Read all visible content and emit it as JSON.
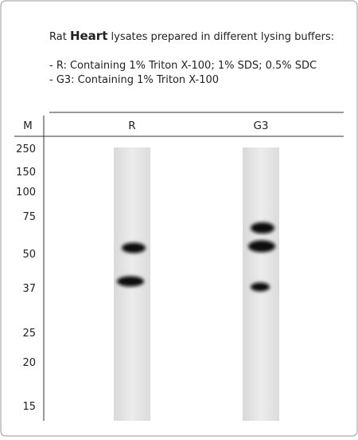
{
  "header": {
    "title_prefix": "Rat",
    "title_bold": "Heart",
    "title_suffix": "lysates prepared in different lysing buffers:",
    "buffers": [
      "- R: Containing 1% Triton X-100; 1% SDS; 0.5% SDC",
      "- G3: Containing 1% Triton X-100"
    ]
  },
  "columns": [
    "M",
    "R",
    "G3"
  ],
  "markers": [
    "250",
    "150",
    "100",
    "75",
    "50",
    "37",
    "25",
    "20",
    "15"
  ]
}
